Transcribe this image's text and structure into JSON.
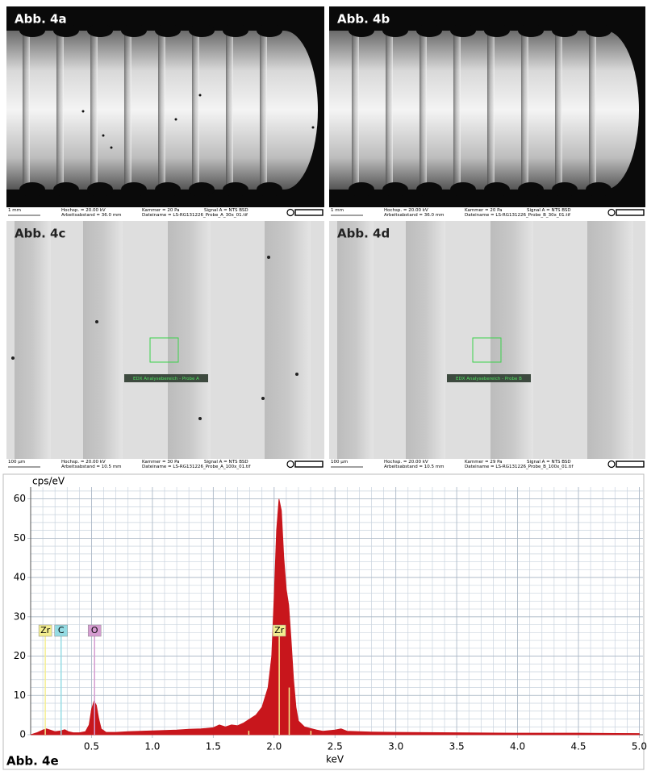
{
  "panels": [
    {
      "label": "Abb. 4a",
      "scale": "1 mm",
      "voltage": "Hochsp. = 20.00 kV",
      "distance": "Arbeitsabstand = 36.0 mm",
      "chamber": "Kammer =  20 Pa",
      "file": "Dateiname = LS-RG131226_Probe_A_30x_01.tif",
      "signal": "Signal A = NTS BSD"
    },
    {
      "label": "Abb. 4b",
      "scale": "1 mm",
      "voltage": "Hochsp. = 20.00 kV",
      "distance": "Arbeitsabstand = 36.0 mm",
      "chamber": "Kammer =  20 Pa",
      "file": "Dateiname = LS-RG131226_Probe_B_30x_01.tif",
      "signal": "Signal A = NTS BSD"
    },
    {
      "label": "Abb. 4c",
      "scale": "100 µm",
      "voltage": "Hochsp. = 20.00 kV",
      "distance": "Arbeitsabstand = 10.5 mm",
      "chamber": "Kammer =  30 Pa",
      "file": "Dateiname = LS-RG131226_Probe_A_100x_01.tif",
      "signal": "Signal A = NTS BSD",
      "area": "EDX Analysebereich - Probe A"
    },
    {
      "label": "Abb. 4d",
      "scale": "100 µm",
      "voltage": "Hochsp. = 20.00 kV",
      "distance": "Arbeitsabstand = 10.5 mm",
      "chamber": "Kammer =  29 Pa",
      "file": "Dateiname = LS-RG131226_Probe_B_100x_01.tif",
      "signal": "Signal A = NTS BSD",
      "area": "EDX Analysebereich - Probe B"
    }
  ],
  "chart_data": {
    "type": "area",
    "title": "Abb. 4e",
    "ylabel": "cps/eV",
    "xlabel": "keV",
    "x": [
      0,
      0.05,
      0.1,
      0.13,
      0.16,
      0.2,
      0.25,
      0.28,
      0.31,
      0.35,
      0.4,
      0.45,
      0.48,
      0.5,
      0.52,
      0.54,
      0.56,
      0.58,
      0.62,
      0.7,
      0.8,
      0.9,
      1.0,
      1.1,
      1.2,
      1.3,
      1.4,
      1.5,
      1.55,
      1.6,
      1.65,
      1.7,
      1.75,
      1.8,
      1.85,
      1.9,
      1.95,
      1.98,
      2.0,
      2.02,
      2.04,
      2.06,
      2.08,
      2.1,
      2.12,
      2.14,
      2.16,
      2.18,
      2.2,
      2.25,
      2.3,
      2.35,
      2.4,
      2.5,
      2.55,
      2.6,
      2.8,
      3.0,
      3.5,
      4.0,
      4.5,
      5.0
    ],
    "series": [
      {
        "color": "#c8161c",
        "values": [
          0,
          0.5,
          1.2,
          1.5,
          1.2,
          0.8,
          1.0,
          1.3,
          0.8,
          0.5,
          0.5,
          0.8,
          2.5,
          6.5,
          8.5,
          7.5,
          4,
          1.5,
          0.6,
          0.6,
          0.8,
          0.9,
          1.0,
          1.1,
          1.2,
          1.4,
          1.5,
          1.8,
          2.5,
          2.0,
          2.5,
          2.3,
          3.0,
          4.0,
          5.0,
          7.0,
          12,
          20,
          35,
          52,
          60,
          57,
          45,
          37,
          33,
          24,
          14,
          7,
          3.5,
          2.0,
          1.6,
          1.2,
          0.9,
          1.2,
          1.5,
          0.9,
          0.7,
          0.6,
          0.5,
          0.4,
          0.4,
          0.3
        ]
      }
    ],
    "xlim": [
      0,
      5.03
    ],
    "ylim": [
      0,
      63
    ],
    "xticks": [
      0.5,
      {
        "value": 1,
        "label": "1.0"
      },
      1.5,
      {
        "value": 2,
        "label": "2.0"
      },
      2.5,
      {
        "value": 3,
        "label": "3.0"
      },
      3.5,
      {
        "value": 4,
        "label": "4.0"
      },
      4.5,
      {
        "value": 5,
        "label": "5.0"
      }
    ],
    "yticks": [
      0,
      10,
      20,
      30,
      40,
      50,
      60
    ],
    "minor_grid": {
      "x": 0.1,
      "y": 2
    },
    "grid": true,
    "markers": [
      {
        "label": "Zr",
        "x": 0.12,
        "color": "#f4ee90"
      },
      {
        "label": "C",
        "x": 0.25,
        "color": "#94dbe3"
      },
      {
        "label": "O",
        "x": 0.525,
        "color": "#d59cd1"
      },
      {
        "label": "Zr",
        "x": 2.042,
        "color": "#f4ee90"
      }
    ],
    "lines": [
      {
        "x": 2.124,
        "height": 12
      },
      {
        "x": 1.792,
        "height": 1
      },
      {
        "x": 2.302,
        "height": 1
      }
    ]
  }
}
